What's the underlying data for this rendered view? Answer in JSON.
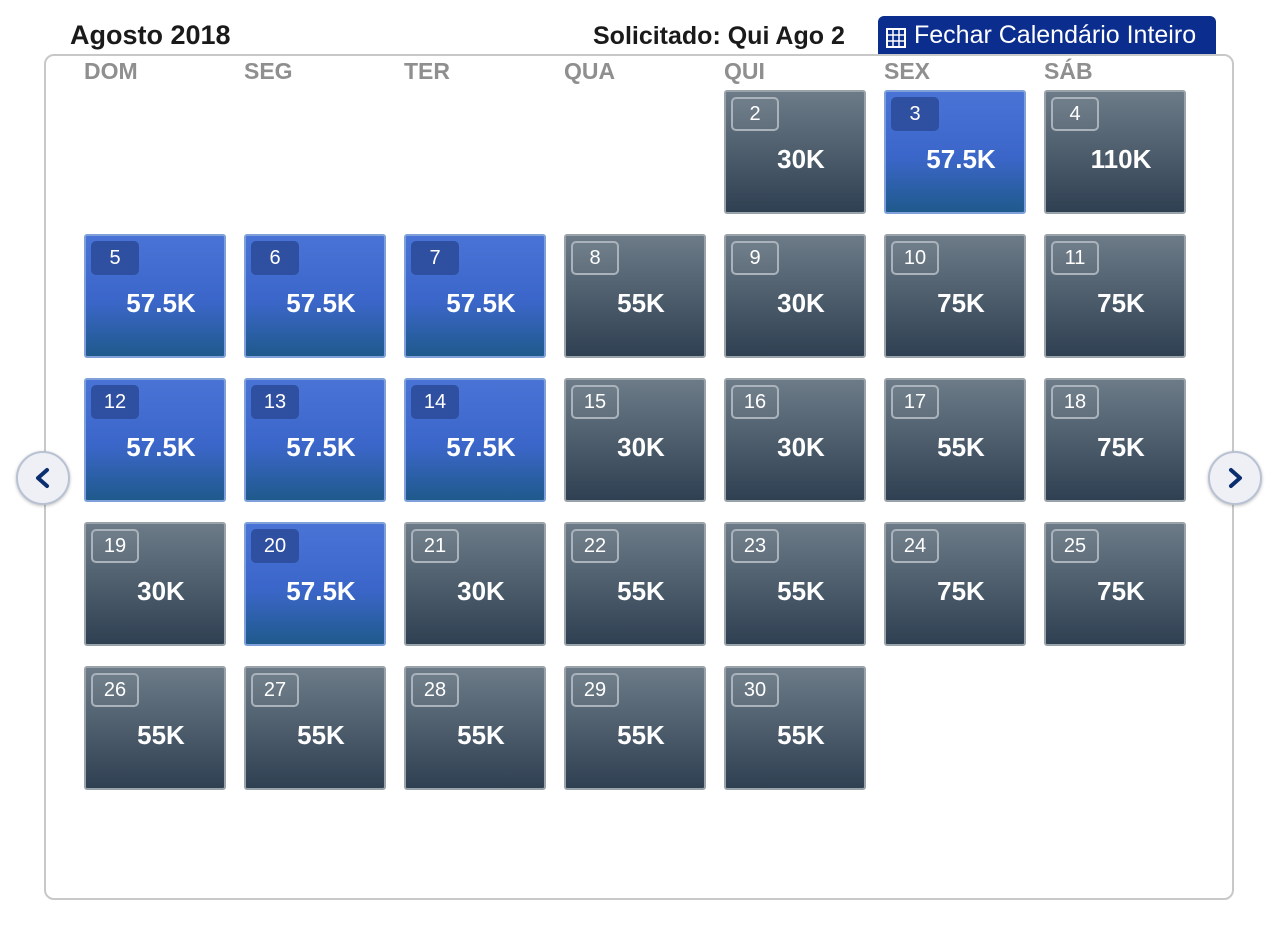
{
  "header": {
    "month": "Agosto 2018",
    "requested": "Solicitado: Qui Ago 2",
    "close_button": "Fechar Calendário Inteiro"
  },
  "weekdays": [
    "DOM",
    "SEG",
    "TER",
    "QUA",
    "QUI",
    "SEX",
    "SÁB"
  ],
  "nav": {
    "prev_icon": "chevron-left-icon",
    "next_icon": "chevron-right-icon"
  },
  "colors": {
    "accent_dark": "#0b2e8e",
    "highlight_blue": "#3b66c9",
    "cell_dark": "#3e4e5e"
  },
  "days": [
    {
      "day": "2",
      "price": "30K",
      "style": "dark"
    },
    {
      "day": "3",
      "price": "57.5K",
      "style": "blue"
    },
    {
      "day": "4",
      "price": "110K",
      "style": "dark"
    },
    {
      "day": "5",
      "price": "57.5K",
      "style": "blue"
    },
    {
      "day": "6",
      "price": "57.5K",
      "style": "blue"
    },
    {
      "day": "7",
      "price": "57.5K",
      "style": "blue"
    },
    {
      "day": "8",
      "price": "55K",
      "style": "dark"
    },
    {
      "day": "9",
      "price": "30K",
      "style": "dark"
    },
    {
      "day": "10",
      "price": "75K",
      "style": "dark"
    },
    {
      "day": "11",
      "price": "75K",
      "style": "dark"
    },
    {
      "day": "12",
      "price": "57.5K",
      "style": "blue"
    },
    {
      "day": "13",
      "price": "57.5K",
      "style": "blue"
    },
    {
      "day": "14",
      "price": "57.5K",
      "style": "blue"
    },
    {
      "day": "15",
      "price": "30K",
      "style": "dark"
    },
    {
      "day": "16",
      "price": "30K",
      "style": "dark"
    },
    {
      "day": "17",
      "price": "55K",
      "style": "dark"
    },
    {
      "day": "18",
      "price": "75K",
      "style": "dark"
    },
    {
      "day": "19",
      "price": "30K",
      "style": "dark"
    },
    {
      "day": "20",
      "price": "57.5K",
      "style": "blue"
    },
    {
      "day": "21",
      "price": "30K",
      "style": "dark"
    },
    {
      "day": "22",
      "price": "55K",
      "style": "dark"
    },
    {
      "day": "23",
      "price": "55K",
      "style": "dark"
    },
    {
      "day": "24",
      "price": "75K",
      "style": "dark"
    },
    {
      "day": "25",
      "price": "75K",
      "style": "dark"
    },
    {
      "day": "26",
      "price": "55K",
      "style": "dark"
    },
    {
      "day": "27",
      "price": "55K",
      "style": "dark"
    },
    {
      "day": "28",
      "price": "55K",
      "style": "dark"
    },
    {
      "day": "29",
      "price": "55K",
      "style": "dark"
    },
    {
      "day": "30",
      "price": "55K",
      "style": "dark"
    }
  ]
}
